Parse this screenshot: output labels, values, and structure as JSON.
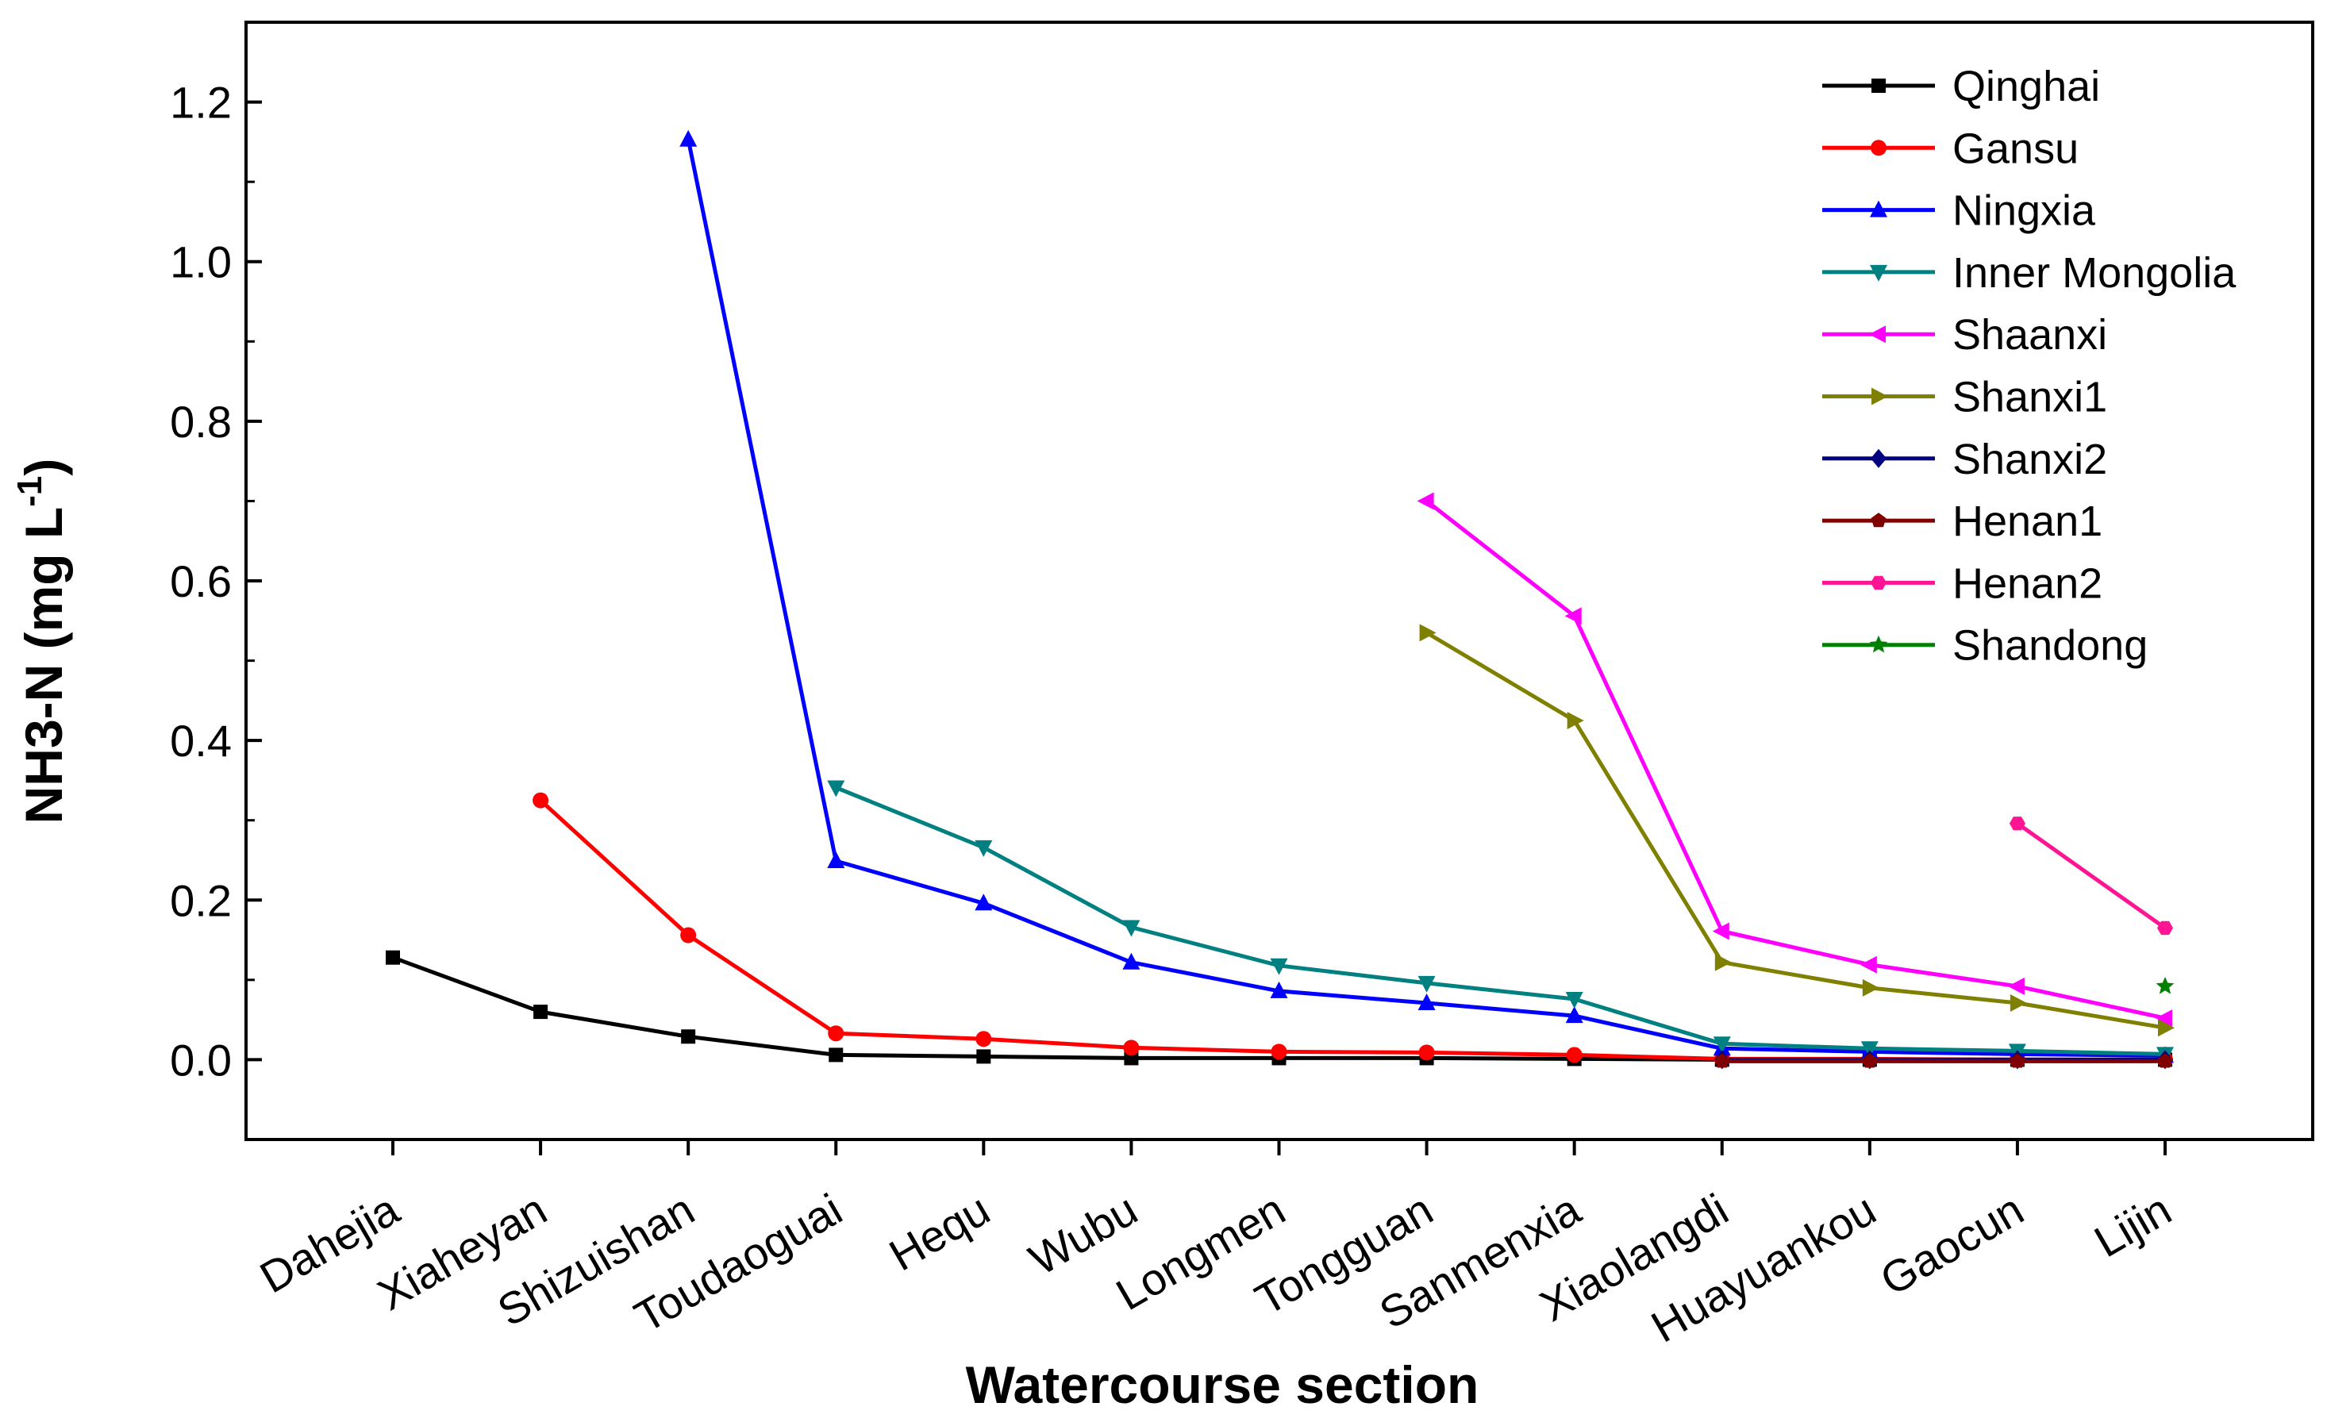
{
  "chart_data": {
    "type": "line",
    "title": "",
    "xlabel": "Watercourse section",
    "ylabel": "NH3-N (mg L",
    "ylabel_superscript": "-1",
    "ylabel_suffix": ")",
    "ylim": [
      -0.1,
      1.3
    ],
    "yticks": [
      0.0,
      0.2,
      0.4,
      0.6,
      0.8,
      1.0,
      1.2
    ],
    "ytick_labels": [
      "0.0",
      "0.2",
      "0.4",
      "0.6",
      "0.8",
      "1.0",
      "1.2"
    ],
    "grid": false,
    "legend_position": "top-right",
    "categories": [
      "Dahejia",
      "Xiaheyan",
      "Shizuishan",
      "Toudaoguai",
      "Hequ",
      "Wubu",
      "Longmen",
      "Tongguan",
      "Sanmenxia",
      "Xiaolangdi",
      "Huayuankou",
      "Gaocun",
      "Lijin"
    ],
    "series": [
      {
        "name": "Qinghai",
        "color": "#000000",
        "marker": "square",
        "values": [
          0.128,
          0.06,
          0.029,
          0.006,
          0.004,
          0.002,
          0.002,
          0.002,
          0.001,
          0.0,
          0.0,
          0.0,
          0.0
        ]
      },
      {
        "name": "Gansu",
        "color": "#ff0000",
        "marker": "circle",
        "values": [
          null,
          0.325,
          0.156,
          0.033,
          0.026,
          0.015,
          0.01,
          0.009,
          0.006,
          0.001,
          0.001,
          0.0,
          0.0
        ]
      },
      {
        "name": "Ningxia",
        "color": "#0000ff",
        "marker": "triangle-up",
        "values": [
          null,
          null,
          1.153,
          0.249,
          0.196,
          0.122,
          0.086,
          0.071,
          0.055,
          0.014,
          0.01,
          0.007,
          0.005
        ]
      },
      {
        "name": "Inner Mongolia",
        "color": "#008080",
        "marker": "triangle-down",
        "values": [
          null,
          null,
          null,
          0.341,
          0.266,
          0.166,
          0.118,
          0.096,
          0.076,
          0.02,
          0.014,
          0.011,
          0.007
        ]
      },
      {
        "name": "Shaanxi",
        "color": "#ff00ff",
        "marker": "triangle-left",
        "values": [
          null,
          null,
          null,
          null,
          null,
          null,
          null,
          0.7,
          0.556,
          0.161,
          0.119,
          0.092,
          0.052
        ]
      },
      {
        "name": "Shanxi1",
        "color": "#808000",
        "marker": "triangle-right",
        "values": [
          null,
          null,
          null,
          null,
          null,
          null,
          null,
          0.535,
          0.425,
          0.122,
          0.09,
          0.071,
          0.04
        ]
      },
      {
        "name": "Shanxi2",
        "color": "#000080",
        "marker": "diamond",
        "values": [
          null,
          null,
          null,
          null,
          null,
          null,
          null,
          null,
          null,
          0.0,
          0.0,
          0.0,
          0.0
        ]
      },
      {
        "name": "Henan1",
        "color": "#800000",
        "marker": "pentagon",
        "values": [
          null,
          null,
          null,
          null,
          null,
          null,
          null,
          null,
          null,
          -0.002,
          -0.002,
          -0.002,
          -0.002
        ]
      },
      {
        "name": "Henan2",
        "color": "#ff1493",
        "marker": "hexagon",
        "values": [
          null,
          null,
          null,
          null,
          null,
          null,
          null,
          null,
          null,
          null,
          null,
          0.296,
          0.165
        ]
      },
      {
        "name": "Shandong",
        "color": "#008000",
        "marker": "star",
        "values": [
          null,
          null,
          null,
          null,
          null,
          null,
          null,
          null,
          null,
          null,
          null,
          null,
          0.092
        ]
      }
    ]
  }
}
